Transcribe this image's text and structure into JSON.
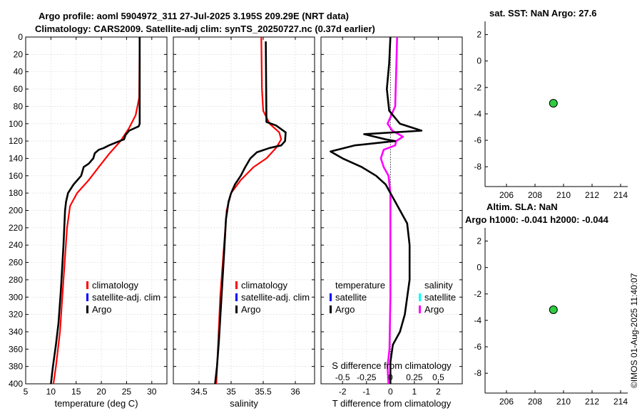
{
  "header": {
    "title_line1": "Argo profile: aoml 5904972_311 27-Jul-2025 3.195S 209.29E (NRT data)",
    "title_line2": "Climatology: CARS2009. Satellite-adj clim: synTS_20250727.nc (0.37d earlier)",
    "sst_title": "sat. SST: NaN Argo: 27.6",
    "sla_title_line1": "Altim. SLA: NaN",
    "sla_title_line2": "Argo h1000: -0.041 h2000: -0.044",
    "timestamp": "©IMOS 01-Aug-2025 11:40:07"
  },
  "colors": {
    "climatology": "#ff0000",
    "satellite": "#0000ff",
    "argo": "#000000",
    "salinity_argo": "#ff00ff",
    "salinity_satellite": "#00ffff",
    "marker": "#2ecc40"
  },
  "chart_data": [
    {
      "type": "line",
      "title": "",
      "xlabel": "temperature (deg C)",
      "ylabel": "",
      "xlim": [
        5,
        33
      ],
      "ylim": [
        400,
        0
      ],
      "x_ticks": [
        "5",
        "10",
        "15",
        "20",
        "25",
        "30"
      ],
      "y_ticks": [
        "0",
        "20",
        "40",
        "60",
        "80",
        "100",
        "120",
        "140",
        "160",
        "180",
        "200",
        "220",
        "240",
        "260",
        "280",
        "300",
        "320",
        "340",
        "360",
        "380",
        "400"
      ],
      "legend": [
        "climatology",
        "satellite-adj. clim",
        "Argo"
      ],
      "series": [
        {
          "name": "climatology",
          "points": [
            [
              27.6,
              0
            ],
            [
              27.5,
              70
            ],
            [
              26.8,
              90
            ],
            [
              25.5,
              105
            ],
            [
              23.8,
              120
            ],
            [
              21.5,
              135
            ],
            [
              19.5,
              150
            ],
            [
              17.5,
              165
            ],
            [
              15.2,
              180
            ],
            [
              13.8,
              195
            ],
            [
              13.2,
              220
            ],
            [
              12.5,
              280
            ],
            [
              11.8,
              340
            ],
            [
              11.0,
              380
            ],
            [
              10.5,
              400
            ]
          ]
        },
        {
          "name": "Argo",
          "points": [
            [
              27.6,
              0
            ],
            [
              27.6,
              100
            ],
            [
              27.4,
              103
            ],
            [
              25.5,
              108
            ],
            [
              24.8,
              113
            ],
            [
              24.5,
              118
            ],
            [
              23.2,
              121
            ],
            [
              21.5,
              125
            ],
            [
              20.5,
              128
            ],
            [
              19.5,
              130
            ],
            [
              18.7,
              134
            ],
            [
              18.4,
              140
            ],
            [
              17.5,
              146
            ],
            [
              16.5,
              150
            ],
            [
              16.0,
              160
            ],
            [
              14.5,
              170
            ],
            [
              13.4,
              180
            ],
            [
              13.0,
              190
            ],
            [
              12.8,
              200
            ],
            [
              12.5,
              240
            ],
            [
              12.0,
              290
            ],
            [
              11.5,
              330
            ],
            [
              11.0,
              355
            ],
            [
              10.4,
              380
            ],
            [
              10.0,
              400
            ]
          ]
        }
      ]
    },
    {
      "type": "line",
      "title": "",
      "xlabel": "salinity",
      "ylabel": "",
      "xlim": [
        34.1,
        36.3
      ],
      "ylim": [
        400,
        0
      ],
      "x_ticks": [
        "34.5",
        "35",
        "35.5",
        "36"
      ],
      "legend": [
        "climatology",
        "satellite-adj. clim",
        "Argo"
      ],
      "series": [
        {
          "name": "climatology",
          "points": [
            [
              35.47,
              0
            ],
            [
              35.48,
              60
            ],
            [
              35.5,
              85
            ],
            [
              35.6,
              100
            ],
            [
              35.75,
              110
            ],
            [
              35.78,
              118
            ],
            [
              35.7,
              128
            ],
            [
              35.55,
              140
            ],
            [
              35.35,
              150
            ],
            [
              35.15,
              165
            ],
            [
              35.0,
              180
            ],
            [
              34.93,
              200
            ],
            [
              34.88,
              250
            ],
            [
              34.83,
              300
            ],
            [
              34.8,
              350
            ],
            [
              34.77,
              400
            ]
          ]
        },
        {
          "name": "Argo",
          "points": [
            [
              35.54,
              5
            ],
            [
              35.55,
              98
            ],
            [
              35.7,
              102
            ],
            [
              35.85,
              110
            ],
            [
              35.84,
              120
            ],
            [
              35.78,
              125
            ],
            [
              35.6,
              128
            ],
            [
              35.4,
              133
            ],
            [
              35.3,
              140
            ],
            [
              35.22,
              150
            ],
            [
              35.15,
              160
            ],
            [
              35.06,
              170
            ],
            [
              35.0,
              180
            ],
            [
              34.96,
              190
            ],
            [
              34.92,
              210
            ],
            [
              34.89,
              250
            ],
            [
              34.85,
              300
            ],
            [
              34.81,
              350
            ],
            [
              34.78,
              380
            ],
            [
              34.75,
              400
            ]
          ]
        }
      ]
    },
    {
      "type": "line",
      "title": "",
      "xlabel": "T difference from climatology",
      "xlabel_secondary": "S difference from climatology",
      "xlim": [
        -2.9,
        3.0
      ],
      "ylim": [
        400,
        0
      ],
      "x_ticks": [
        "-2",
        "-1",
        "0",
        "1",
        "2"
      ],
      "x_ticks_secondary": [
        "-0.5",
        "-0.25",
        "0",
        "0.25",
        "0.5"
      ],
      "legend_left": [
        "temperature",
        "satellite",
        "Argo"
      ],
      "legend_right": [
        "salinity",
        "satellite",
        "Argo"
      ],
      "series": [
        {
          "name": "temperature Argo",
          "points": [
            [
              0,
              0
            ],
            [
              -0.05,
              30
            ],
            [
              -0.15,
              60
            ],
            [
              -0.05,
              85
            ],
            [
              0.4,
              100
            ],
            [
              1.3,
              108
            ],
            [
              -1.1,
              112
            ],
            [
              -0.2,
              118
            ],
            [
              0.2,
              120
            ],
            [
              -1.5,
              125
            ],
            [
              -2.5,
              132
            ],
            [
              -2.0,
              140
            ],
            [
              -1.2,
              150
            ],
            [
              -0.6,
              160
            ],
            [
              -0.2,
              170
            ],
            [
              0.0,
              180
            ],
            [
              0.3,
              195
            ],
            [
              0.7,
              215
            ],
            [
              0.8,
              240
            ],
            [
              0.8,
              280
            ],
            [
              0.6,
              320
            ],
            [
              0.4,
              340
            ],
            [
              0.1,
              355
            ],
            [
              0.0,
              375
            ],
            [
              0.0,
              400
            ]
          ]
        },
        {
          "name": "salinity Argo",
          "points": [
            [
              0.07,
              0
            ],
            [
              0.06,
              40
            ],
            [
              0.05,
              80
            ],
            [
              -0.03,
              100
            ],
            [
              0.02,
              108
            ],
            [
              0.13,
              115
            ],
            [
              0.06,
              120
            ],
            [
              0.05,
              125
            ],
            [
              -0.07,
              130
            ],
            [
              -0.1,
              140
            ],
            [
              -0.07,
              150
            ],
            [
              -0.02,
              160
            ],
            [
              0.0,
              180
            ],
            [
              0.0,
              240
            ],
            [
              0.0,
              300
            ],
            [
              -0.01,
              360
            ],
            [
              -0.03,
              380
            ],
            [
              -0.02,
              400
            ]
          ]
        }
      ]
    },
    {
      "type": "scatter",
      "title": "sat. SST: NaN Argo: 27.6",
      "xlim": [
        204.5,
        214.5
      ],
      "ylim": [
        -9.5,
        3
      ],
      "x_ticks": [
        "206",
        "208",
        "210",
        "212",
        "214"
      ],
      "y_ticks": [
        "2",
        "0",
        "-2",
        "-4",
        "-6",
        "-8"
      ],
      "points": [
        [
          209.29,
          -3.195
        ]
      ]
    },
    {
      "type": "scatter",
      "title": "Altim. SLA: NaN",
      "xlim": [
        204.5,
        214.5
      ],
      "ylim": [
        -9.5,
        3
      ],
      "x_ticks": [
        "206",
        "208",
        "210",
        "212",
        "214"
      ],
      "y_ticks": [
        "2",
        "0",
        "-2",
        "-4",
        "-6",
        "-8"
      ],
      "points": [
        [
          209.29,
          -3.195
        ]
      ]
    }
  ]
}
